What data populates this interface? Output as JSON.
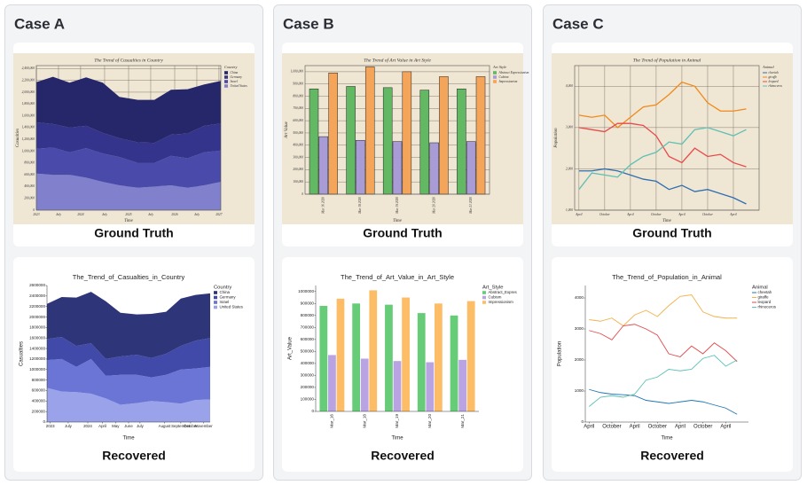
{
  "panels": [
    {
      "title": "Case A",
      "captions": [
        "Ground Truth",
        "Recovered"
      ]
    },
    {
      "title": "Case B",
      "captions": [
        "Ground Truth",
        "Recovered"
      ]
    },
    {
      "title": "Case C",
      "captions": [
        "Ground Truth",
        "Recovered"
      ]
    }
  ],
  "chart_data": [
    {
      "type": "area",
      "stacked": true,
      "title": "The Trend of Casualties in Country",
      "x_label": "Time",
      "y_label": "Casualties",
      "legend_title": "Country",
      "background": "#efe6d4",
      "grid": true,
      "x": [
        0,
        9,
        18,
        27,
        36,
        45,
        55,
        64,
        73,
        82,
        91,
        100
      ],
      "xlim": [
        0,
        100
      ],
      "xticks": [
        {
          "value": 0,
          "label": "2023"
        },
        {
          "value": 12,
          "label": "July"
        },
        {
          "value": 24,
          "label": "2024"
        },
        {
          "value": 37,
          "label": "July"
        },
        {
          "value": 50,
          "label": "2025"
        },
        {
          "value": 62,
          "label": "July"
        },
        {
          "value": 75,
          "label": "2026"
        },
        {
          "value": 87,
          "label": "July"
        },
        {
          "value": 99,
          "label": "2027"
        }
      ],
      "ylim": [
        0,
        2450000
      ],
      "yticks": [
        0,
        {
          "value": 200000,
          "label": "200,000"
        },
        {
          "value": 400000,
          "label": "400,000"
        },
        {
          "value": 600000,
          "label": "600,000"
        },
        {
          "value": 800000,
          "label": "800,000"
        },
        {
          "value": 1000000,
          "label": "1,000,000"
        },
        {
          "value": 1200000,
          "label": "1,200,000"
        },
        {
          "value": 1400000,
          "label": "1,400,000"
        },
        {
          "value": 1600000,
          "label": "1,600,000"
        },
        {
          "value": 1800000,
          "label": "1,800,000"
        },
        {
          "value": 2000000,
          "label": "2,000,000"
        },
        {
          "value": 2200000,
          "label": "2,200,000"
        },
        {
          "value": 2400000,
          "label": "2,400,000"
        }
      ],
      "series": [
        {
          "name": "China",
          "color": "#26266a",
          "values": [
            680000,
            800000,
            760000,
            820000,
            850000,
            700000,
            720000,
            730000,
            760000,
            750000,
            700000,
            720000
          ]
        },
        {
          "name": "Germany",
          "color": "#34348c",
          "values": [
            450000,
            400000,
            420000,
            380000,
            350000,
            320000,
            350000,
            340000,
            360000,
            420000,
            450000,
            460000
          ]
        },
        {
          "name": "Israel",
          "color": "#4a4aab",
          "values": [
            420000,
            460000,
            380000,
            500000,
            480000,
            480000,
            420000,
            400000,
            500000,
            500000,
            560000,
            530000
          ]
        },
        {
          "name": "United States",
          "color": "#8080cc",
          "values": [
            620000,
            600000,
            600000,
            550000,
            480000,
            420000,
            380000,
            400000,
            420000,
            380000,
            420000,
            480000
          ]
        }
      ]
    },
    {
      "type": "area",
      "stacked": true,
      "title": "The_Trend_of_Casualties_in_Country",
      "x_label": "Time",
      "y_label": "Casualties",
      "legend_title": "Country",
      "grid": false,
      "x": [
        0,
        9,
        18,
        27,
        36,
        45,
        55,
        64,
        73,
        82,
        91,
        100
      ],
      "xlim": [
        0,
        100
      ],
      "xticks": [
        {
          "value": 2,
          "label": "2023"
        },
        {
          "value": 13,
          "label": "July"
        },
        {
          "value": 25,
          "label": "2024"
        },
        {
          "value": 34,
          "label": "April"
        },
        {
          "value": 42,
          "label": "May"
        },
        {
          "value": 50,
          "label": "June"
        },
        {
          "value": 57,
          "label": "July"
        },
        {
          "value": 72,
          "label": "August"
        },
        {
          "value": 82,
          "label": "September"
        },
        {
          "value": 88,
          "label": "October"
        },
        {
          "value": 96,
          "label": "November"
        }
      ],
      "ylim": [
        0,
        2600000
      ],
      "yticks": [
        0,
        200000,
        400000,
        600000,
        800000,
        1000000,
        1200000,
        1400000,
        1600000,
        1800000,
        2000000,
        2200000,
        2400000,
        2600000
      ],
      "series": [
        {
          "name": "China",
          "color": "#2e3578",
          "values": [
            670000,
            760000,
            920000,
            980000,
            1100000,
            830000,
            770000,
            840000,
            800000,
            900000,
            870000,
            850000
          ]
        },
        {
          "name": "Germany",
          "color": "#414aa8",
          "values": [
            400000,
            420000,
            400000,
            300000,
            320000,
            350000,
            380000,
            370000,
            400000,
            450000,
            530000,
            550000
          ]
        },
        {
          "name": "Israel",
          "color": "#6b75d6",
          "values": [
            530000,
            620000,
            480000,
            660000,
            430000,
            570000,
            540000,
            450000,
            520000,
            650000,
            600000,
            620000
          ]
        },
        {
          "name": "United States",
          "color": "#9aa3ea",
          "values": [
            650000,
            580000,
            570000,
            540000,
            450000,
            330000,
            360000,
            400000,
            380000,
            350000,
            420000,
            430000
          ]
        }
      ]
    },
    {
      "type": "bar",
      "title": "The Trend of Art Value in Art Style",
      "x_label": "Time",
      "y_label": "Art Value",
      "legend_title": "Art Style",
      "background": "#efe6d4",
      "grid": true,
      "categories": [
        "Mar 16 2020",
        "Mar 18 2020",
        "Mar 19 2020",
        "Mar 20 2020",
        "Mar 21 2020"
      ],
      "ylim": [
        0,
        1050000
      ],
      "yticks": [
        0,
        {
          "value": 100000,
          "label": "100,000"
        },
        {
          "value": 200000,
          "label": "200,000"
        },
        {
          "value": 300000,
          "label": "300,000"
        },
        {
          "value": 400000,
          "label": "400,000"
        },
        {
          "value": 500000,
          "label": "500,000"
        },
        {
          "value": 600000,
          "label": "600,000"
        },
        {
          "value": 700000,
          "label": "700,000"
        },
        {
          "value": 800000,
          "label": "800,000"
        },
        {
          "value": 900000,
          "label": "900,000"
        },
        {
          "value": 1000000,
          "label": "1,000,000"
        }
      ],
      "series": [
        {
          "name": "Abstract Expressionism",
          "color": "#63b863",
          "values": [
            860000,
            880000,
            870000,
            850000,
            860000
          ]
        },
        {
          "name": "Cubism",
          "color": "#a89bd6",
          "values": [
            470000,
            440000,
            430000,
            420000,
            430000
          ]
        },
        {
          "name": "Impressionism",
          "color": "#f5a55a",
          "values": [
            990000,
            1040000,
            1000000,
            960000,
            960000
          ]
        }
      ]
    },
    {
      "type": "bar",
      "title": "The_Trend_of_Art_Value_in_Art_Style",
      "x_label": "Time",
      "y_label": "Art_Value",
      "legend_title": "Art_Style",
      "grid": false,
      "categories": [
        "Mar_16",
        "Mar_18",
        "Mar_19",
        "Mar_20",
        "Mar_21"
      ],
      "ylim": [
        0,
        1050000
      ],
      "yticks": [
        0,
        100000,
        200000,
        300000,
        400000,
        500000,
        600000,
        700000,
        800000,
        900000,
        1000000
      ],
      "series": [
        {
          "name": "Abstract_Expres",
          "color": "#66cc77",
          "values": [
            880000,
            900000,
            890000,
            820000,
            800000
          ]
        },
        {
          "name": "Cubism",
          "color": "#b9a3e3",
          "values": [
            470000,
            440000,
            420000,
            410000,
            430000
          ]
        },
        {
          "name": "Impressionism",
          "color": "#fdbd66",
          "values": [
            940000,
            1010000,
            950000,
            900000,
            920000
          ]
        }
      ]
    },
    {
      "type": "line",
      "title": "The Trend of Population in Animal",
      "x_label": "Time",
      "y_label": "Population",
      "legend_title": "Animal",
      "background": "#efe6d4",
      "grid": true,
      "x": [
        0,
        3,
        6,
        9,
        12,
        15,
        18,
        21,
        24,
        27,
        30,
        33,
        36,
        39
      ],
      "xlim": [
        -1,
        42
      ],
      "xticks": [
        {
          "value": 0,
          "label": "April"
        },
        {
          "value": 6,
          "label": "October"
        },
        {
          "value": 12,
          "label": "April"
        },
        {
          "value": 18,
          "label": "October"
        },
        {
          "value": 24,
          "label": "April"
        },
        {
          "value": 30,
          "label": "October"
        },
        {
          "value": 36,
          "label": "April"
        }
      ],
      "ylim": [
        1000,
        4500
      ],
      "yticks": [
        {
          "value": 1000,
          "label": "1,000"
        },
        {
          "value": 2000,
          "label": "2,000"
        },
        {
          "value": 3000,
          "label": "3,000"
        },
        {
          "value": 4000,
          "label": "4,000"
        }
      ],
      "series": [
        {
          "name": "cheetah",
          "color": "#2f6fb0",
          "values": [
            1950,
            1950,
            2000,
            1950,
            1850,
            1750,
            1700,
            1500,
            1600,
            1450,
            1500,
            1400,
            1300,
            1150
          ]
        },
        {
          "name": "giraffe",
          "color": "#f08a1a",
          "values": [
            3300,
            3250,
            3300,
            3000,
            3250,
            3500,
            3550,
            3800,
            4100,
            4000,
            3600,
            3400,
            3400,
            3450
          ]
        },
        {
          "name": "leopard",
          "color": "#e84a4a",
          "values": [
            3000,
            2950,
            2900,
            3100,
            3100,
            3050,
            2800,
            2300,
            2150,
            2500,
            2300,
            2350,
            2150,
            2050
          ]
        },
        {
          "name": "rhinoceros",
          "color": "#5fbfb3",
          "values": [
            1500,
            1900,
            1850,
            1800,
            2100,
            2300,
            2400,
            2650,
            2600,
            2950,
            3000,
            2900,
            2800,
            2950
          ]
        }
      ]
    },
    {
      "type": "line",
      "title": "The_Trend_of_Population_in_Animal",
      "x_label": "Time",
      "y_label": "Population",
      "legend_title": "Animal",
      "grid": false,
      "x": [
        0,
        3,
        6,
        9,
        12,
        15,
        18,
        21,
        24,
        27,
        30,
        33,
        36,
        39
      ],
      "xlim": [
        -1,
        42
      ],
      "xticks": [
        {
          "value": 0,
          "label": "April"
        },
        {
          "value": 6,
          "label": "October"
        },
        {
          "value": 12,
          "label": "April"
        },
        {
          "value": 18,
          "label": "October"
        },
        {
          "value": 24,
          "label": "April"
        },
        {
          "value": 30,
          "label": "October"
        },
        {
          "value": 36,
          "label": "April"
        }
      ],
      "ylim": [
        0,
        4400
      ],
      "yticks": [
        0,
        1000,
        2000,
        3000,
        4000
      ],
      "series": [
        {
          "name": "cheetah",
          "color": "#1f77b4",
          "values": [
            1050,
            950,
            900,
            880,
            850,
            700,
            650,
            600,
            650,
            700,
            650,
            550,
            450,
            250
          ]
        },
        {
          "name": "giraffe",
          "color": "#f2b14c",
          "values": [
            3300,
            3250,
            3350,
            3100,
            3450,
            3600,
            3400,
            3750,
            4050,
            4100,
            3550,
            3400,
            3350,
            3350
          ]
        },
        {
          "name": "leopard",
          "color": "#e34a4a",
          "values": [
            2950,
            2850,
            2650,
            3100,
            3150,
            3000,
            2800,
            2200,
            2100,
            2450,
            2200,
            2550,
            2300,
            1950
          ]
        },
        {
          "name": "rhinoceros",
          "color": "#5cc0b5",
          "values": [
            500,
            800,
            850,
            800,
            900,
            1350,
            1450,
            1700,
            1650,
            1700,
            2050,
            2150,
            1800,
            2000
          ]
        }
      ]
    }
  ]
}
